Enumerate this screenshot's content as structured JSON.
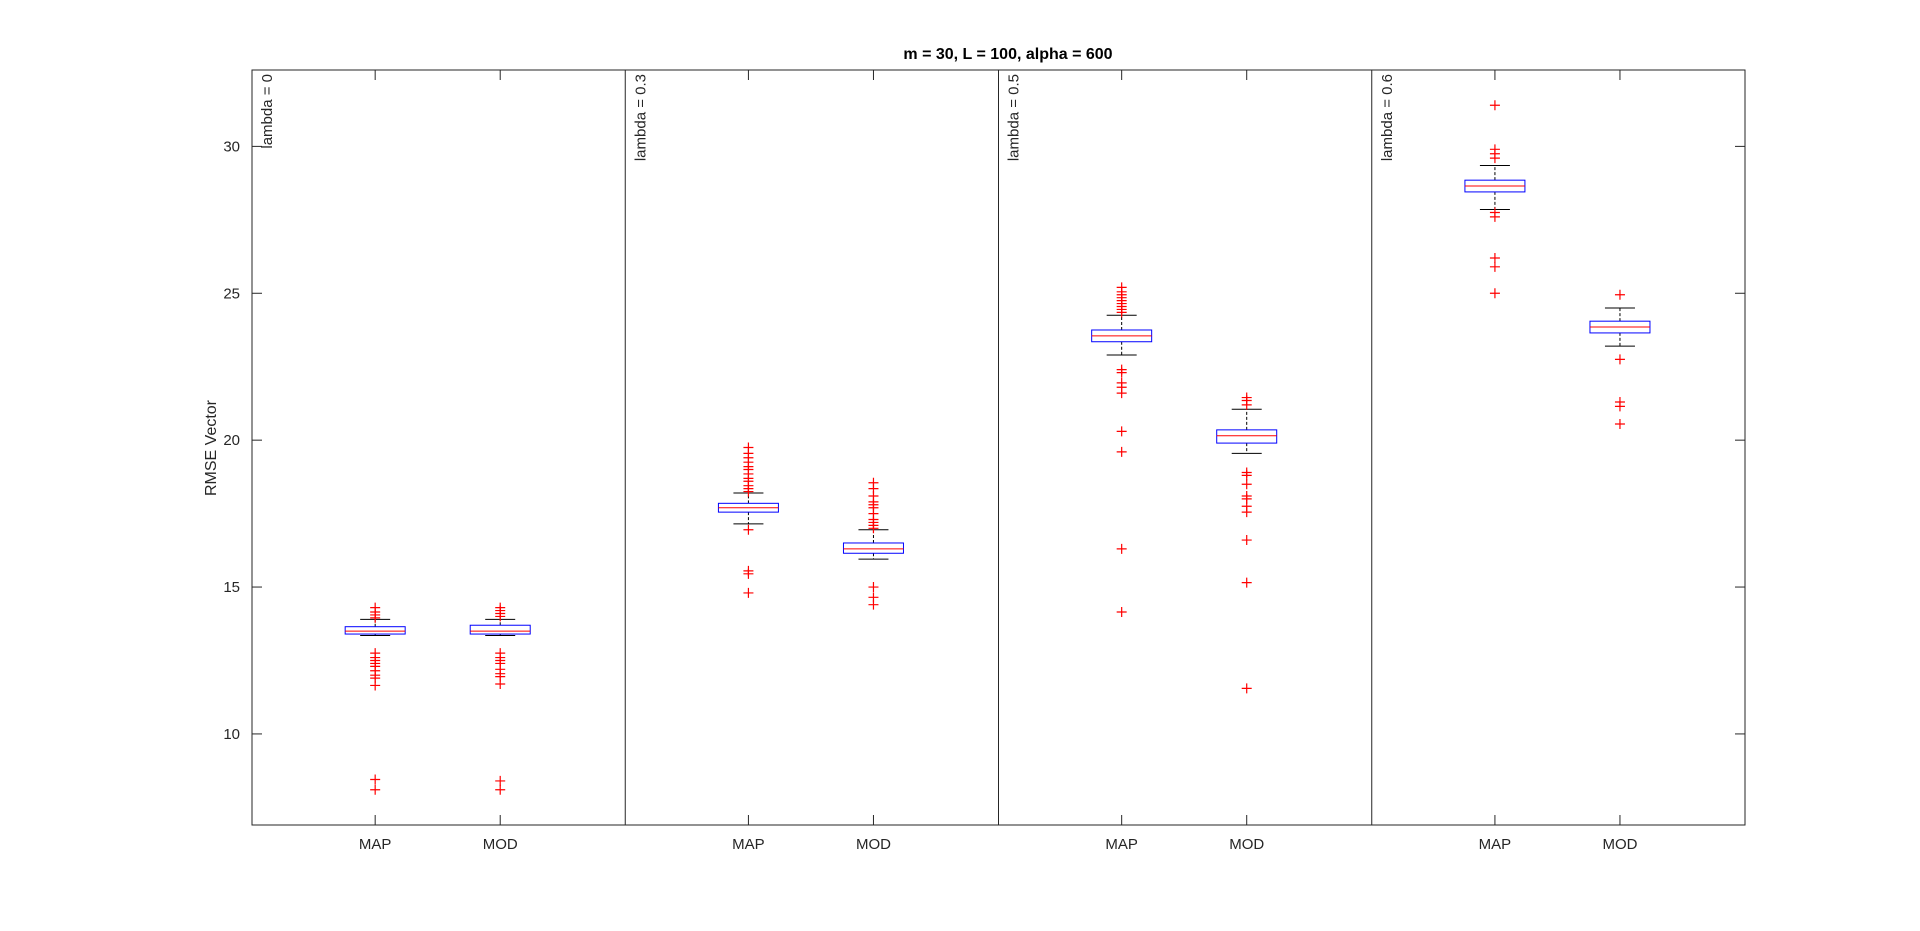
{
  "chart_data": {
    "type": "box",
    "title": "m = 30, L = 100, alpha = 600",
    "xlabel": "",
    "ylabel": "RMSE Vector",
    "ylim": [
      6.9,
      32.6
    ],
    "yticks": [
      10,
      15,
      20,
      25,
      30
    ],
    "grid": false,
    "colors": {
      "box": "#0000ff",
      "median": "#ff0000",
      "whisker": "#000000",
      "outlier": "#ff0000",
      "axes": "#262626"
    },
    "groups": [
      {
        "label": "lambda = 0",
        "boxes": [
          {
            "label": "MAP",
            "q1": 13.4,
            "median": 13.5,
            "q3": 13.65,
            "whisker_low": 13.35,
            "whisker_high": 13.9,
            "outliers": [
              14.3,
              14.15,
              14.05,
              13.95,
              12.75,
              12.6,
              12.5,
              12.4,
              12.3,
              12.15,
              12.0,
              11.9,
              11.65,
              8.45,
              8.1
            ]
          },
          {
            "label": "MOD",
            "q1": 13.4,
            "median": 13.5,
            "q3": 13.7,
            "whisker_low": 13.35,
            "whisker_high": 13.9,
            "outliers": [
              14.3,
              14.2,
              14.1,
              14.0,
              12.75,
              12.6,
              12.5,
              12.4,
              12.2,
              12.05,
              11.95,
              11.7,
              8.4,
              8.1
            ]
          }
        ]
      },
      {
        "label": "lambda = 0.3",
        "boxes": [
          {
            "label": "MAP",
            "q1": 17.55,
            "median": 17.7,
            "q3": 17.85,
            "whisker_low": 17.15,
            "whisker_high": 18.2,
            "outliers": [
              19.75,
              19.55,
              19.4,
              19.25,
              19.1,
              19.0,
              18.85,
              18.7,
              18.6,
              18.45,
              18.35,
              18.25,
              16.95,
              15.55,
              15.45,
              14.8
            ]
          },
          {
            "label": "MOD",
            "q1": 16.15,
            "median": 16.3,
            "q3": 16.5,
            "whisker_low": 15.95,
            "whisker_high": 16.95,
            "outliers": [
              18.55,
              18.35,
              18.1,
              17.9,
              17.8,
              17.7,
              17.5,
              17.3,
              17.2,
              17.1,
              17.0,
              15.0,
              14.65,
              14.4
            ]
          }
        ]
      },
      {
        "label": "lambda = 0.5",
        "boxes": [
          {
            "label": "MAP",
            "q1": 23.35,
            "median": 23.55,
            "q3": 23.75,
            "whisker_low": 22.9,
            "whisker_high": 24.25,
            "outliers": [
              25.2,
              25.05,
              24.95,
              24.85,
              24.75,
              24.65,
              24.55,
              24.45,
              24.35,
              22.4,
              22.3,
              21.95,
              21.8,
              21.6,
              20.3,
              19.6,
              16.3,
              14.15
            ]
          },
          {
            "label": "MOD",
            "q1": 19.9,
            "median": 20.15,
            "q3": 20.35,
            "whisker_low": 19.55,
            "whisker_high": 21.05,
            "outliers": [
              21.45,
              21.35,
              21.2,
              18.9,
              18.8,
              18.5,
              18.1,
              18.0,
              17.75,
              17.55,
              16.6,
              15.15,
              11.55
            ]
          }
        ]
      },
      {
        "label": "lambda = 0.6",
        "boxes": [
          {
            "label": "MAP",
            "q1": 28.45,
            "median": 28.65,
            "q3": 28.85,
            "whisker_low": 27.85,
            "whisker_high": 29.35,
            "outliers": [
              31.4,
              29.9,
              29.75,
              29.6,
              27.75,
              27.6,
              26.2,
              25.9,
              25.0
            ]
          },
          {
            "label": "MOD",
            "q1": 23.65,
            "median": 23.85,
            "q3": 24.05,
            "whisker_low": 23.2,
            "whisker_high": 24.5,
            "outliers": [
              24.95,
              22.75,
              21.3,
              21.15,
              20.55
            ]
          }
        ]
      }
    ]
  }
}
